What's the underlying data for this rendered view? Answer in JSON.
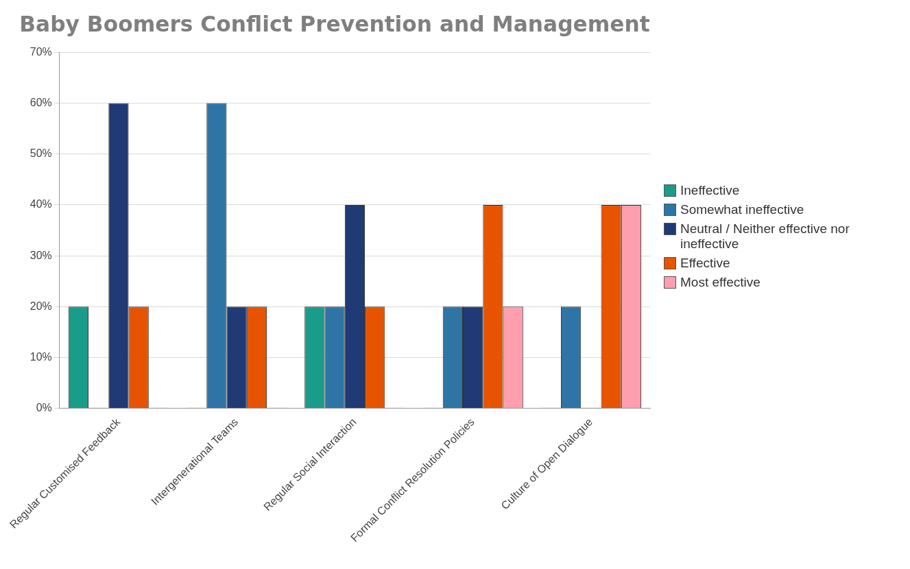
{
  "chart_data": {
    "type": "bar",
    "title": "Baby Boomers Conflict Prevention and Management",
    "categories": [
      "Regular Customised Feedback",
      "Intergenerational Teams",
      "Regular Social Interaction",
      "Formal Conflict Resolution Policies",
      "Culture of Open Dialogue"
    ],
    "series": [
      {
        "name": "Ineffective",
        "color": "#1a9c8a",
        "values": [
          20,
          0,
          20,
          0,
          0
        ]
      },
      {
        "name": "Somewhat ineffective",
        "color": "#2e75a6",
        "values": [
          0,
          60,
          20,
          20,
          20
        ]
      },
      {
        "name": "Neutral / Neither effective nor ineffective",
        "color": "#1f3a75",
        "values": [
          60,
          20,
          40,
          20,
          0
        ]
      },
      {
        "name": "Effective",
        "color": "#e65400",
        "values": [
          20,
          20,
          20,
          40,
          40
        ]
      },
      {
        "name": "Most effective",
        "color": "#ff9eae",
        "values": [
          0,
          0,
          0,
          20,
          40
        ]
      }
    ],
    "ylim": [
      0,
      70
    ],
    "yticks": [
      {
        "value": 0,
        "label": "0%"
      },
      {
        "value": 10,
        "label": "10%"
      },
      {
        "value": 20,
        "label": "20%"
      },
      {
        "value": 30,
        "label": "30%"
      },
      {
        "value": 40,
        "label": "40%"
      },
      {
        "value": 50,
        "label": "50%"
      },
      {
        "value": 60,
        "label": "60%"
      },
      {
        "value": 70,
        "label": "70%"
      }
    ],
    "grid": "y",
    "legend": "right"
  }
}
